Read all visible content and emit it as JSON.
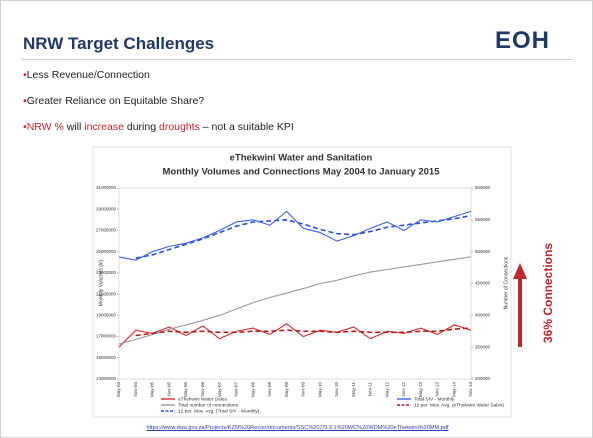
{
  "header": {
    "title": "NRW Target Challenges",
    "logo": "EOH"
  },
  "bullets": [
    "Less Revenue/Connection",
    "Greater Reliance on Equitable Share?",
    [
      "NRW %",
      " will ",
      "increase",
      " during ",
      "droughts",
      " – not a suitable KPI"
    ]
  ],
  "source": "https://www.dwa.gov.za/Projects/KZN%20Recon/documents/SSC%207/5.9.1%20WC%20WDM%20eThekwini%20MM.pdf",
  "chart_data": {
    "type": "line",
    "title": "eThekwini Water and Sanitation",
    "subtitle": "Monthly Volumes and Connections May 2004 to  January 2015",
    "ylabel": "Monthly Volumes (kl)",
    "y2label": "Number of Connections",
    "annotation": "36% Connections",
    "categories": [
      "May-04",
      "Nov-04",
      "May-05",
      "Nov-05",
      "May-06",
      "Nov-06",
      "May-07",
      "Nov-07",
      "May-08",
      "Nov-08",
      "May-09",
      "Nov-09",
      "May-10",
      "Nov-10",
      "May-11",
      "Nov-11",
      "May-12",
      "Nov-12",
      "May-13",
      "Nov-13",
      "May-14",
      "Nov-14"
    ],
    "ylim": [
      13000000,
      31000000
    ],
    "yticks": [
      13000000,
      15000000,
      17000000,
      19000000,
      21000000,
      23000000,
      25000000,
      27000000,
      29000000,
      31000000
    ],
    "y2lim": [
      300000,
      600000
    ],
    "y2ticks": [
      300000,
      350000,
      400000,
      450000,
      500000,
      550000,
      600000
    ],
    "series": [
      {
        "name": "eThekwini Water Sales",
        "color": "#d42a2a",
        "dashed": false,
        "values": [
          16000000,
          17600000,
          17300000,
          17900000,
          17100000,
          18000000,
          16800000,
          17500000,
          17800000,
          17200000,
          18200000,
          17000000,
          17600000,
          17400000,
          17900000,
          16800000,
          17500000,
          17300000,
          17800000,
          17200000,
          18100000,
          17600000
        ]
      },
      {
        "name": "Total number of connections",
        "color": "#9a9a9a",
        "dashed": false,
        "axis": "y2",
        "values": [
          355000,
          362000,
          370000,
          378000,
          385000,
          392000,
          400000,
          410000,
          420000,
          428000,
          435000,
          442000,
          450000,
          455000,
          462000,
          468000,
          472000,
          476000,
          480000,
          484000,
          488000,
          492000
        ]
      },
      {
        "name": "12 per. Mov. Avg. (Total SIV - Monthly)",
        "color": "#2a4fd6",
        "dashed": true,
        "values": [
          null,
          24400000,
          24700000,
          25200000,
          25700000,
          26200000,
          26800000,
          27400000,
          27800000,
          27900000,
          28000000,
          27600000,
          27100000,
          26700000,
          26600000,
          26900000,
          27300000,
          27500000,
          27700000,
          27900000,
          28100000,
          28400000
        ]
      },
      {
        "name": "Total SIV - Monthly",
        "color": "#3a62f0",
        "dashed": false,
        "values": [
          24500000,
          24200000,
          25000000,
          25500000,
          25800000,
          26300000,
          27000000,
          27800000,
          28000000,
          27500000,
          28800000,
          27200000,
          26800000,
          26000000,
          26500000,
          27200000,
          27800000,
          27000000,
          28000000,
          27800000,
          28300000,
          28800000
        ]
      },
      {
        "name": "12 per. Mov. Avg. (eThekwini Water Sales)",
        "color": "#b01e1e",
        "dashed": true,
        "values": [
          null,
          17100000,
          17300000,
          17500000,
          17400000,
          17500000,
          17400000,
          17400000,
          17500000,
          17500000,
          17600000,
          17500000,
          17500000,
          17400000,
          17500000,
          17400000,
          17400000,
          17400000,
          17500000,
          17500000,
          17700000,
          17800000
        ]
      }
    ]
  }
}
